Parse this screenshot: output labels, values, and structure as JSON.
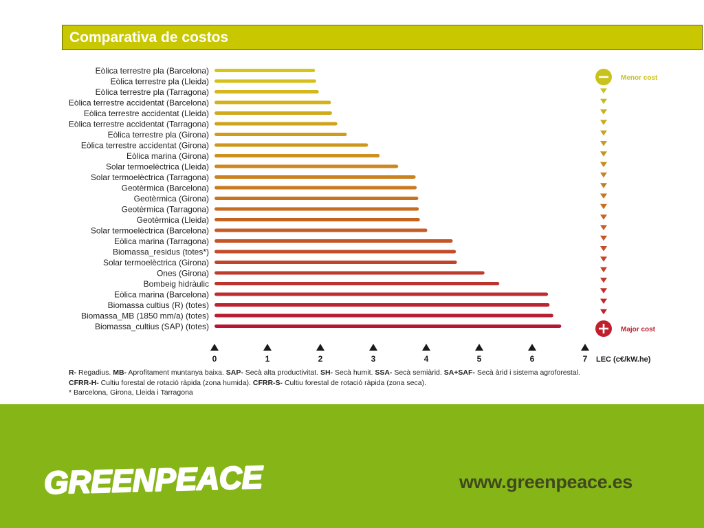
{
  "header": {
    "title": "Comparativa de costos"
  },
  "chart_data": {
    "type": "bar",
    "orientation": "horizontal",
    "categories": [
      "Eòlica terrestre pla (Barcelona)",
      "Eòlica terrestre pla (Lleida)",
      "Eòlica terrestre pla (Tarragona)",
      "Eòlica terrestre accidentat (Barcelona)",
      "Eòlica terrestre accidentat (Lleida)",
      "Eòlica terrestre accidentat (Tarragona)",
      "Eòlica terrestre pla (Girona)",
      "Eòlica terrestre accidentat (Girona)",
      "Eòlica marina (Girona)",
      "Solar termoelèctrica (Lleida)",
      "Solar termoelèctrica (Tarragona)",
      "Geotèrmica (Barcelona)",
      "Geotèrmica (Girona)",
      "Geotèrmica (Tarragona)",
      "Geotèrmica (Lleida)",
      "Solar termoelèctrica (Barcelona)",
      "Eòlica marina (Tarragona)",
      "Biomassa_residus (totes*)",
      "Solar termoelèctrica (Girona)",
      "Ones (Girona)",
      "Bombeig hidràulic",
      "Eòlica marina (Barcelona)",
      "Biomassa cultius (R) (totes)",
      "Biomassa_MB (1850 mm/a) (totes)",
      "Biomassa_cultius (SAP) (totes)"
    ],
    "values": [
      1.9,
      1.92,
      1.97,
      2.2,
      2.22,
      2.32,
      2.5,
      2.9,
      3.12,
      3.47,
      3.8,
      3.82,
      3.85,
      3.86,
      3.88,
      4.02,
      4.5,
      4.56,
      4.58,
      5.1,
      5.38,
      6.3,
      6.33,
      6.4,
      6.55
    ],
    "x_ticks": [
      "0",
      "1",
      "2",
      "3",
      "4",
      "5",
      "6",
      "7"
    ],
    "xlabel": "LEC (c€/kW.he)",
    "xlim": [
      0,
      7
    ],
    "legend": {
      "top": "Menor cost",
      "bottom": "Major cost"
    },
    "colors": {
      "start": "#d6c61a",
      "middle": "#c8731f",
      "end": "#b81535",
      "arrow_start": "#c9c21a",
      "arrow_end": "#c0202e",
      "tick_marker": "#1a1a1a"
    }
  },
  "notes": {
    "line1": [
      {
        "abbr": "R-",
        "text": " Regadius. "
      },
      {
        "abbr": "MB-",
        "text": " Aprofitament muntanya baixa. "
      },
      {
        "abbr": "SAP-",
        "text": " Secà alta productivitat. "
      },
      {
        "abbr": "SH-",
        "text": " Secà humit. "
      },
      {
        "abbr": "SSA-",
        "text": " Secà semiàrid. "
      },
      {
        "abbr": "SA+SAF-",
        "text": " Secà àrid i sistema agroforestal."
      }
    ],
    "line2": [
      {
        "abbr": "CFRR-H-",
        "text": " Cultiu forestal de rotació ràpida (zona humida). "
      },
      {
        "abbr": "CFRR-S-",
        "text": " Cultiu forestal de rotació ràpida (zona seca)."
      }
    ],
    "line3": "* Barcelona, Girona, Lleida i Tarragona"
  },
  "footer": {
    "logo_text": "GREENPEACE",
    "url": "www.greenpeace.es",
    "colors": {
      "background": "#86b517",
      "logo": "#ffffff",
      "url": "#3f4a1c"
    }
  }
}
